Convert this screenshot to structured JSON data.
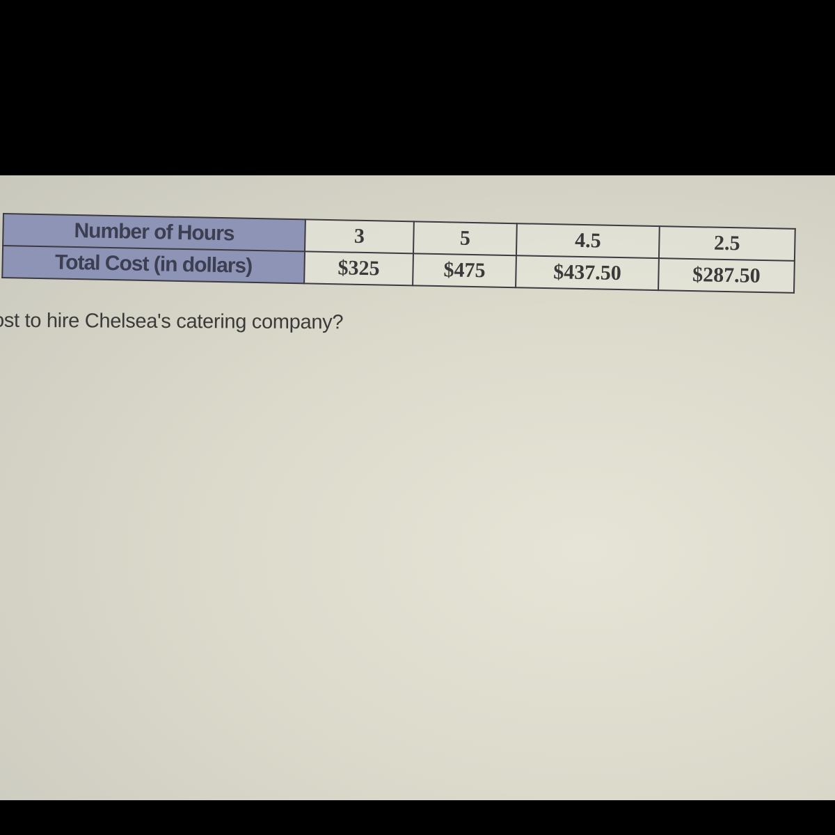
{
  "table": {
    "rows": [
      {
        "header": "Number of Hours",
        "cells": [
          "3",
          "5",
          "4.5",
          "2.5"
        ]
      },
      {
        "header": "Total Cost (in dollars)",
        "cells": [
          "$325",
          "$475",
          "$437.50",
          "$287.50"
        ]
      }
    ],
    "header_color": "#8e94b6"
  },
  "question": "ost to hire Chelsea's catering company?"
}
